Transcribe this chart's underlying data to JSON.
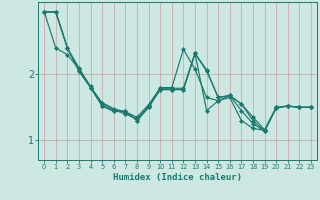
{
  "xlabel": "Humidex (Indice chaleur)",
  "bg_color": "#cde8e3",
  "line_color": "#1a7a6e",
  "grid_color_v": "#c9a0a0",
  "grid_color_h": "#c9a0a0",
  "xlim": [
    -0.5,
    23.5
  ],
  "ylim": [
    0.7,
    3.1
  ],
  "yticks": [
    1,
    2
  ],
  "xticks": [
    0,
    1,
    2,
    3,
    4,
    5,
    6,
    7,
    8,
    9,
    10,
    11,
    12,
    13,
    14,
    15,
    16,
    17,
    18,
    19,
    20,
    21,
    22,
    23
  ],
  "lines": [
    {
      "x": [
        0,
        1,
        2,
        3,
        4,
        5,
        6,
        7,
        8,
        9,
        10,
        11,
        12,
        13,
        14,
        15,
        16,
        17,
        18,
        19,
        20,
        21,
        22,
        23
      ],
      "y": [
        2.95,
        2.95,
        2.4,
        2.05,
        1.8,
        1.52,
        1.44,
        1.44,
        1.3,
        1.5,
        1.77,
        1.77,
        1.77,
        2.32,
        2.05,
        1.65,
        1.68,
        1.55,
        1.35,
        1.16,
        1.5,
        1.52,
        1.5,
        1.5
      ]
    },
    {
      "x": [
        0,
        1,
        2,
        3,
        4,
        5,
        6,
        7,
        8,
        9,
        10,
        11,
        12,
        13,
        14,
        15,
        16,
        17,
        18,
        19,
        20,
        21,
        22,
        23
      ],
      "y": [
        2.95,
        2.95,
        2.4,
        2.1,
        1.8,
        1.57,
        1.48,
        1.43,
        1.35,
        1.54,
        1.79,
        1.79,
        1.79,
        2.32,
        2.07,
        1.65,
        1.68,
        1.55,
        1.3,
        1.14,
        1.49,
        1.52,
        1.5,
        1.5
      ]
    },
    {
      "x": [
        0,
        1,
        2,
        3,
        4,
        5,
        6,
        7,
        8,
        9,
        10,
        11,
        12,
        13,
        14,
        15,
        16,
        17,
        18,
        19,
        20,
        21,
        22,
        23
      ],
      "y": [
        2.95,
        2.4,
        2.3,
        2.08,
        1.82,
        1.55,
        1.46,
        1.4,
        1.32,
        1.52,
        1.8,
        1.8,
        2.38,
        2.08,
        1.65,
        1.6,
        1.68,
        1.45,
        1.25,
        1.14,
        1.49,
        1.52,
        1.5,
        1.5
      ]
    },
    {
      "x": [
        0,
        1,
        2,
        3,
        4,
        5,
        6,
        7,
        8,
        9,
        10,
        11,
        12,
        13,
        14,
        15,
        16,
        17,
        18,
        19,
        20,
        21,
        22,
        23
      ],
      "y": [
        2.95,
        2.95,
        2.4,
        2.05,
        1.8,
        1.52,
        1.44,
        1.44,
        1.3,
        1.5,
        1.77,
        1.77,
        1.77,
        2.32,
        1.45,
        1.6,
        1.65,
        1.3,
        1.18,
        1.15,
        1.5,
        1.52,
        1.5,
        1.5
      ]
    }
  ],
  "marker": "D",
  "markersize": 2.0,
  "linewidth": 0.85
}
